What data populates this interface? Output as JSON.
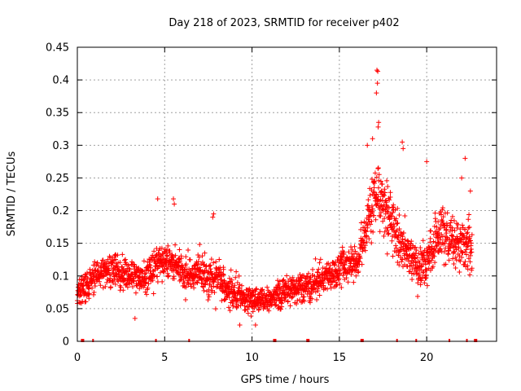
{
  "chart_data": {
    "type": "scatter",
    "title": "Day 218 of 2023, SRMTID for receiver p402",
    "xlabel": "GPS time / hours",
    "ylabel": "SRMTID / TECUs",
    "xlim": [
      0,
      24
    ],
    "ylim": [
      0,
      0.45
    ],
    "xticks": [
      0,
      5,
      10,
      15,
      20
    ],
    "xtick_labels": [
      "0",
      "5",
      "10",
      "15",
      "20"
    ],
    "yticks": [
      0,
      0.05,
      0.1,
      0.15,
      0.2,
      0.25,
      0.3,
      0.35,
      0.4,
      0.45
    ],
    "ytick_labels": [
      "0",
      "0.05",
      "0.1",
      "0.15",
      "0.2",
      "0.25",
      "0.3",
      "0.35",
      "0.4",
      "0.45"
    ],
    "grid": true,
    "marker": "+",
    "color": "#ff0000",
    "trend": [
      {
        "x": 0.0,
        "y": 0.07
      },
      {
        "x": 1.0,
        "y": 0.1
      },
      {
        "x": 2.0,
        "y": 0.11
      },
      {
        "x": 3.0,
        "y": 0.1
      },
      {
        "x": 4.0,
        "y": 0.1
      },
      {
        "x": 4.6,
        "y": 0.12
      },
      {
        "x": 5.5,
        "y": 0.12
      },
      {
        "x": 6.5,
        "y": 0.1
      },
      {
        "x": 7.5,
        "y": 0.1
      },
      {
        "x": 8.5,
        "y": 0.08
      },
      {
        "x": 9.5,
        "y": 0.065
      },
      {
        "x": 10.5,
        "y": 0.06
      },
      {
        "x": 11.5,
        "y": 0.07
      },
      {
        "x": 12.5,
        "y": 0.08
      },
      {
        "x": 13.5,
        "y": 0.09
      },
      {
        "x": 14.5,
        "y": 0.1
      },
      {
        "x": 15.3,
        "y": 0.12
      },
      {
        "x": 16.0,
        "y": 0.12
      },
      {
        "x": 16.5,
        "y": 0.17
      },
      {
        "x": 17.0,
        "y": 0.22
      },
      {
        "x": 17.5,
        "y": 0.21
      },
      {
        "x": 18.0,
        "y": 0.19
      },
      {
        "x": 18.5,
        "y": 0.15
      },
      {
        "x": 19.0,
        "y": 0.13
      },
      {
        "x": 19.5,
        "y": 0.11
      },
      {
        "x": 20.0,
        "y": 0.12
      },
      {
        "x": 20.5,
        "y": 0.16
      },
      {
        "x": 21.0,
        "y": 0.17
      },
      {
        "x": 21.5,
        "y": 0.15
      },
      {
        "x": 22.0,
        "y": 0.15
      },
      {
        "x": 22.6,
        "y": 0.14
      }
    ],
    "spread": [
      {
        "x": 0.0,
        "s": 0.018
      },
      {
        "x": 8.0,
        "s": 0.024
      },
      {
        "x": 10.5,
        "s": 0.016
      },
      {
        "x": 15.0,
        "s": 0.02
      },
      {
        "x": 16.5,
        "s": 0.03
      },
      {
        "x": 17.5,
        "s": 0.045
      },
      {
        "x": 19.0,
        "s": 0.025
      },
      {
        "x": 22.6,
        "s": 0.035
      }
    ],
    "notable_points": [
      {
        "x": 17.15,
        "y": 0.415
      },
      {
        "x": 17.2,
        "y": 0.413
      },
      {
        "x": 17.18,
        "y": 0.395
      },
      {
        "x": 17.12,
        "y": 0.38
      },
      {
        "x": 17.25,
        "y": 0.335
      },
      {
        "x": 17.22,
        "y": 0.328
      },
      {
        "x": 16.9,
        "y": 0.31
      },
      {
        "x": 16.6,
        "y": 0.3
      },
      {
        "x": 18.6,
        "y": 0.305
      },
      {
        "x": 18.65,
        "y": 0.295
      },
      {
        "x": 20.0,
        "y": 0.275
      },
      {
        "x": 22.2,
        "y": 0.28
      },
      {
        "x": 4.6,
        "y": 0.218
      },
      {
        "x": 5.5,
        "y": 0.218
      },
      {
        "x": 5.55,
        "y": 0.21
      },
      {
        "x": 7.8,
        "y": 0.195
      },
      {
        "x": 7.75,
        "y": 0.19
      },
      {
        "x": 22.0,
        "y": 0.25
      },
      {
        "x": 22.5,
        "y": 0.23
      },
      {
        "x": 10.2,
        "y": 0.025
      },
      {
        "x": 9.3,
        "y": 0.025
      },
      {
        "x": 3.3,
        "y": 0.035
      }
    ],
    "bottom_markers_x": [
      0.3,
      0.9,
      4.5,
      6.4,
      11.3,
      13.2,
      16.3,
      18.3,
      19.4,
      21.3,
      22.3,
      22.8
    ],
    "bottom_markers_bold_x": [
      0.3,
      11.3,
      13.2,
      16.3,
      22.8
    ],
    "seed": 218
  }
}
